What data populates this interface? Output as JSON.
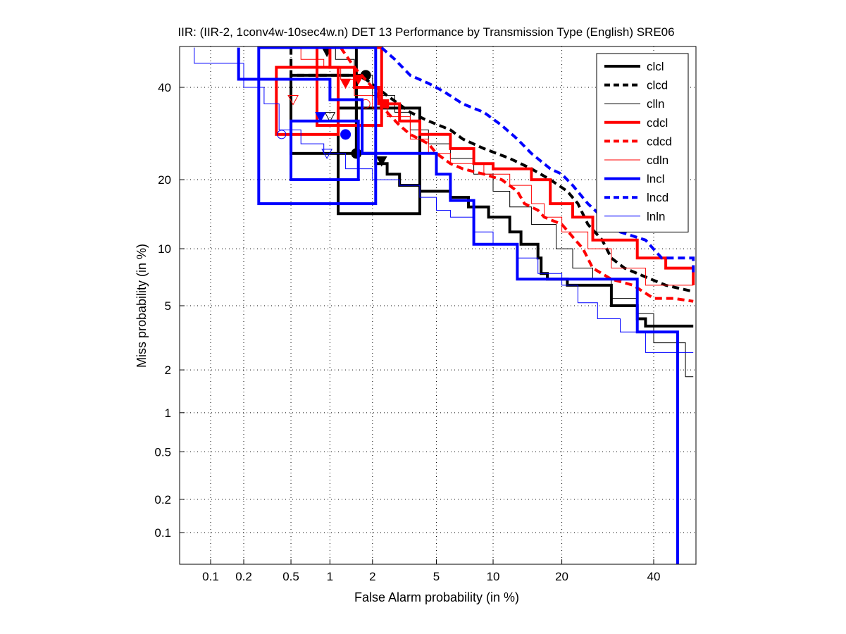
{
  "chart_data": {
    "type": "line",
    "title": "IIR: (IIR-2, 1conv4w-10sec4w.n) DET 13 Performance by Transmission Type (English) SRE06",
    "xlabel": "False Alarm probability (in %)",
    "ylabel": "Miss probability (in %)",
    "xscale": "normal-deviate",
    "yscale": "normal-deviate",
    "xlim": [
      0.05,
      50
    ],
    "ylim": [
      0.05,
      50
    ],
    "x_ticks": [
      0.1,
      0.2,
      0.5,
      1,
      2,
      5,
      10,
      20,
      40
    ],
    "x_tick_labels": [
      "0.1",
      "0.2",
      "0.5",
      "1",
      "2",
      "5",
      "10",
      "20",
      "40"
    ],
    "y_ticks": [
      0.1,
      0.2,
      0.5,
      1,
      2,
      5,
      10,
      20,
      40
    ],
    "y_tick_labels": [
      "0.1",
      "0.2",
      "0.5",
      "1",
      "2",
      "5",
      "10",
      "20",
      "40"
    ],
    "grid": true,
    "legend_position": "top-right",
    "series": [
      {
        "name": "clcl",
        "color": "#000000",
        "style": "solid",
        "weight": "thick",
        "points": [
          [
            1.55,
            50
          ],
          [
            1.55,
            25
          ],
          [
            2.1,
            25
          ],
          [
            2.1,
            23
          ],
          [
            2.5,
            23
          ],
          [
            2.5,
            21
          ],
          [
            3,
            21
          ],
          [
            3,
            19
          ],
          [
            4,
            19
          ],
          [
            4,
            18
          ],
          [
            6,
            18
          ],
          [
            6,
            17
          ],
          [
            7.5,
            17
          ],
          [
            7.5,
            15.5
          ],
          [
            9.5,
            15.5
          ],
          [
            9.5,
            14
          ],
          [
            12,
            14
          ],
          [
            12,
            12
          ],
          [
            13.5,
            12
          ],
          [
            13.5,
            10.5
          ],
          [
            16,
            10.5
          ],
          [
            16,
            9
          ],
          [
            16.5,
            9
          ],
          [
            16.5,
            7.5
          ],
          [
            17.5,
            7.5
          ],
          [
            17.5,
            7
          ],
          [
            21,
            7
          ],
          [
            21,
            6.5
          ],
          [
            30,
            6.5
          ],
          [
            30,
            5
          ],
          [
            36,
            5
          ],
          [
            36,
            4.2
          ],
          [
            38,
            4.2
          ],
          [
            38,
            3.8
          ],
          [
            50,
            3.8
          ]
        ],
        "markers": [
          {
            "x": 1.55,
            "y": 25,
            "shape": "circle"
          },
          {
            "x": 2.3,
            "y": 23.5,
            "shape": "down-triangle"
          }
        ],
        "boxes": [
          [
            1.15,
            14.5,
            4,
            35
          ],
          [
            0.5,
            25,
            1.55,
            43
          ]
        ]
      },
      {
        "name": "clcd",
        "color": "#000000",
        "style": "dashed",
        "weight": "thick",
        "points": [
          [
            0.5,
            50
          ],
          [
            0.5,
            43
          ],
          [
            1.7,
            43
          ],
          [
            1.8,
            42
          ],
          [
            2.5,
            38
          ],
          [
            3.5,
            34
          ],
          [
            4.5,
            32
          ],
          [
            6,
            30
          ],
          [
            7,
            28
          ],
          [
            9,
            26
          ],
          [
            12,
            24
          ],
          [
            15,
            22
          ],
          [
            18,
            20
          ],
          [
            21,
            18
          ],
          [
            23,
            16
          ],
          [
            25,
            13
          ],
          [
            28,
            11
          ],
          [
            30,
            9
          ],
          [
            33,
            8
          ],
          [
            38,
            7.2
          ],
          [
            43,
            6.5
          ],
          [
            50,
            6
          ]
        ],
        "markers": [
          {
            "x": 1.8,
            "y": 43,
            "shape": "circle"
          },
          {
            "x": 0.95,
            "y": 49,
            "shape": "down-triangle"
          }
        ],
        "boxes": []
      },
      {
        "name": "clln",
        "color": "#000000",
        "style": "solid",
        "weight": "thin",
        "points": [
          [
            1.1,
            50
          ],
          [
            1.1,
            47
          ],
          [
            1.5,
            47
          ],
          [
            1.5,
            43
          ],
          [
            2,
            43
          ],
          [
            2,
            38
          ],
          [
            2.8,
            38
          ],
          [
            2.8,
            34
          ],
          [
            3.5,
            34
          ],
          [
            3.5,
            30
          ],
          [
            4.5,
            30
          ],
          [
            4.5,
            27
          ],
          [
            6,
            27
          ],
          [
            6,
            24
          ],
          [
            8,
            24
          ],
          [
            8,
            21
          ],
          [
            10,
            21
          ],
          [
            10,
            18
          ],
          [
            12,
            18
          ],
          [
            12,
            15.5
          ],
          [
            15,
            15.5
          ],
          [
            15,
            13
          ],
          [
            19,
            13
          ],
          [
            19,
            10
          ],
          [
            22,
            10
          ],
          [
            22,
            8
          ],
          [
            26,
            8
          ],
          [
            26,
            7
          ],
          [
            30,
            7
          ],
          [
            30,
            5.5
          ],
          [
            36,
            5.5
          ],
          [
            36,
            4.5
          ],
          [
            40,
            4.5
          ],
          [
            40,
            3
          ],
          [
            48,
            3
          ],
          [
            48,
            1.8
          ],
          [
            50,
            1.8
          ]
        ],
        "markers": [
          {
            "x": 1.0,
            "y": 33,
            "shape": "down-triangle"
          }
        ],
        "boxes": []
      },
      {
        "name": "cdcl",
        "color": "#ff0000",
        "style": "solid",
        "weight": "thick",
        "points": [
          [
            1.0,
            50
          ],
          [
            1.0,
            45
          ],
          [
            1.5,
            45
          ],
          [
            1.5,
            40
          ],
          [
            2.2,
            40
          ],
          [
            2.2,
            36
          ],
          [
            3,
            36
          ],
          [
            3,
            32
          ],
          [
            4,
            32
          ],
          [
            4,
            29
          ],
          [
            6,
            29
          ],
          [
            6,
            26
          ],
          [
            8,
            26
          ],
          [
            8,
            23
          ],
          [
            10,
            23
          ],
          [
            10,
            22
          ],
          [
            15,
            22
          ],
          [
            15,
            20
          ],
          [
            18,
            20
          ],
          [
            18,
            16
          ],
          [
            22,
            16
          ],
          [
            22,
            14
          ],
          [
            26,
            14
          ],
          [
            26,
            11
          ],
          [
            36,
            11
          ],
          [
            36,
            9
          ],
          [
            43,
            9
          ],
          [
            43,
            8
          ],
          [
            50,
            8
          ],
          [
            50,
            6.5
          ]
        ],
        "markers": [
          {
            "x": 1.3,
            "y": 41,
            "shape": "down-triangle"
          },
          {
            "x": 2.4,
            "y": 36,
            "shape": "square"
          }
        ],
        "boxes": [
          [
            0.38,
            29,
            1.15,
            45
          ],
          [
            0.8,
            31,
            2.3,
            50
          ]
        ]
      },
      {
        "name": "cdcd",
        "color": "#ff0000",
        "style": "dashed",
        "weight": "thick",
        "points": [
          [
            1.2,
            50
          ],
          [
            1.5,
            45
          ],
          [
            2,
            40
          ],
          [
            2.5,
            34
          ],
          [
            3,
            31
          ],
          [
            3.5,
            29
          ],
          [
            4.5,
            27
          ],
          [
            5,
            25
          ],
          [
            6,
            23
          ],
          [
            7,
            22
          ],
          [
            9,
            21
          ],
          [
            11,
            20
          ],
          [
            13,
            18
          ],
          [
            14,
            16
          ],
          [
            16,
            15
          ],
          [
            17,
            14
          ],
          [
            20,
            13
          ],
          [
            24,
            10
          ],
          [
            26,
            8
          ],
          [
            30,
            7
          ],
          [
            35,
            6.5
          ],
          [
            40,
            5.5
          ],
          [
            45,
            5.5
          ],
          [
            50,
            5.3
          ]
        ],
        "markers": [
          {
            "x": 1.6,
            "y": 42,
            "shape": "down-triangle"
          }
        ],
        "boxes": []
      },
      {
        "name": "cdln",
        "color": "#ff0000",
        "style": "solid",
        "weight": "thin",
        "points": [
          [
            0.6,
            50
          ],
          [
            0.6,
            47
          ],
          [
            0.9,
            47
          ],
          [
            0.9,
            45
          ],
          [
            1.2,
            45
          ],
          [
            1.2,
            42
          ],
          [
            1.5,
            42
          ],
          [
            1.5,
            38
          ],
          [
            2,
            38
          ],
          [
            2,
            35
          ],
          [
            2.5,
            35
          ],
          [
            2.5,
            33
          ],
          [
            3.5,
            33
          ],
          [
            3.5,
            28
          ],
          [
            4.5,
            28
          ],
          [
            4.5,
            25
          ],
          [
            6,
            25
          ],
          [
            6,
            23
          ],
          [
            9,
            23
          ],
          [
            9,
            21
          ],
          [
            12,
            21
          ],
          [
            12,
            19
          ],
          [
            15,
            19
          ],
          [
            15,
            16
          ],
          [
            17,
            16
          ],
          [
            17,
            14
          ],
          [
            20,
            14
          ],
          [
            20,
            12
          ],
          [
            25,
            12
          ],
          [
            25,
            10
          ],
          [
            30,
            10
          ],
          [
            30,
            8
          ],
          [
            38,
            8
          ],
          [
            38,
            6.5
          ],
          [
            50,
            6.5
          ]
        ],
        "markers": [
          {
            "x": 0.52,
            "y": 37,
            "shape": "down-triangle"
          },
          {
            "x": 1.8,
            "y": 36,
            "shape": "circle"
          }
        ],
        "boxes": []
      },
      {
        "name": "lncl",
        "color": "#0000ff",
        "style": "solid",
        "weight": "thick",
        "points": [
          [
            0.18,
            50
          ],
          [
            0.18,
            42
          ],
          [
            1.0,
            42
          ],
          [
            1.0,
            37
          ],
          [
            1.7,
            37
          ],
          [
            1.7,
            25
          ],
          [
            2.1,
            25
          ],
          [
            2.1,
            25
          ],
          [
            5,
            25
          ],
          [
            5,
            21
          ],
          [
            6,
            21
          ],
          [
            6,
            16.5
          ],
          [
            8,
            16.5
          ],
          [
            8,
            10.5
          ],
          [
            13,
            10.5
          ],
          [
            13,
            7
          ],
          [
            36,
            7
          ],
          [
            36,
            3.5
          ],
          [
            46,
            3.5
          ],
          [
            46,
            0.05
          ]
        ],
        "markers": [
          {
            "x": 1.3,
            "y": 29,
            "shape": "circle"
          },
          {
            "x": 0.85,
            "y": 33,
            "shape": "down-triangle"
          }
        ],
        "boxes": [
          [
            0.5,
            20,
            1.6,
            32
          ],
          [
            0.27,
            16,
            2.1,
            50
          ]
        ]
      },
      {
        "name": "lncd",
        "color": "#0000ff",
        "style": "dashed",
        "weight": "thick",
        "points": [
          [
            2.3,
            50
          ],
          [
            2.8,
            47
          ],
          [
            3.5,
            43
          ],
          [
            4.5,
            41
          ],
          [
            5.5,
            39
          ],
          [
            7,
            36
          ],
          [
            9,
            34
          ],
          [
            11,
            31
          ],
          [
            13,
            28
          ],
          [
            15,
            25
          ],
          [
            18,
            22
          ],
          [
            20,
            21
          ],
          [
            22,
            19
          ],
          [
            25,
            16
          ],
          [
            28,
            14
          ],
          [
            32,
            12
          ],
          [
            38,
            11
          ],
          [
            42,
            9
          ],
          [
            50,
            9
          ],
          [
            50,
            7.5
          ]
        ],
        "markers": [],
        "boxes": []
      },
      {
        "name": "lnln",
        "color": "#0000ff",
        "style": "solid",
        "weight": "thin",
        "points": [
          [
            0.07,
            50
          ],
          [
            0.07,
            46
          ],
          [
            0.2,
            46
          ],
          [
            0.2,
            40
          ],
          [
            0.3,
            40
          ],
          [
            0.3,
            36
          ],
          [
            0.4,
            36
          ],
          [
            0.4,
            30
          ],
          [
            0.6,
            30
          ],
          [
            0.6,
            27
          ],
          [
            0.9,
            27
          ],
          [
            0.9,
            25
          ],
          [
            1.3,
            25
          ],
          [
            1.3,
            22
          ],
          [
            2,
            22
          ],
          [
            2,
            20
          ],
          [
            3,
            20
          ],
          [
            3,
            19
          ],
          [
            4,
            19
          ],
          [
            4,
            17
          ],
          [
            5,
            17
          ],
          [
            5,
            15
          ],
          [
            6,
            15
          ],
          [
            6,
            14
          ],
          [
            8,
            14
          ],
          [
            8,
            12
          ],
          [
            10,
            12
          ],
          [
            10,
            10.5
          ],
          [
            13,
            10.5
          ],
          [
            13,
            9
          ],
          [
            16,
            9
          ],
          [
            16,
            7.5
          ],
          [
            20,
            7.5
          ],
          [
            20,
            6.5
          ],
          [
            23,
            6.5
          ],
          [
            23,
            5.2
          ],
          [
            27,
            5.2
          ],
          [
            27,
            4.2
          ],
          [
            32,
            4.2
          ],
          [
            32,
            3.5
          ],
          [
            38,
            3.5
          ],
          [
            38,
            2.6
          ],
          [
            50,
            2.6
          ]
        ],
        "markers": [
          {
            "x": 0.42,
            "y": 29,
            "shape": "circle"
          },
          {
            "x": 0.95,
            "y": 25,
            "shape": "down-triangle"
          }
        ],
        "boxes": []
      }
    ]
  }
}
